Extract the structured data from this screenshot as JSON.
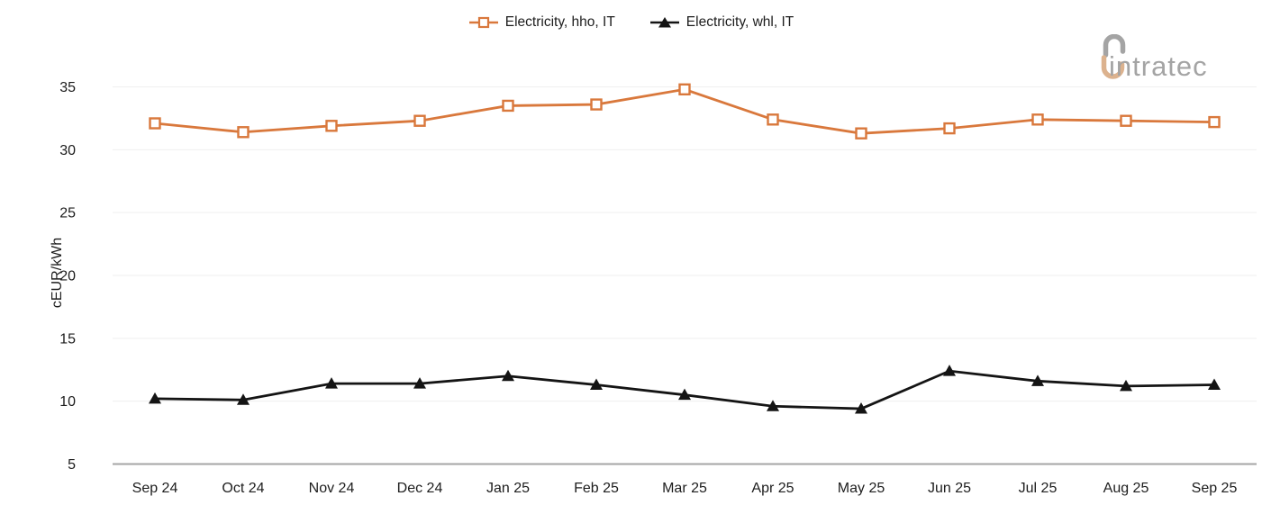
{
  "chart_data": {
    "type": "line",
    "title": "",
    "ylabel": "cEUR/kWh",
    "ylim": [
      5,
      35
    ],
    "yticks": [
      5,
      10,
      15,
      20,
      25,
      30,
      35
    ],
    "grid": "horizontal",
    "legend_position": "top-center",
    "categories": [
      "Sep 24",
      "Oct 24",
      "Nov 24",
      "Dec 24",
      "Jan 25",
      "Feb 25",
      "Mar 25",
      "Apr 25",
      "May 25",
      "Jun 25",
      "Jul 25",
      "Aug 25",
      "Sep 25"
    ],
    "series": [
      {
        "name": "Electricity, hho, IT",
        "color": "#d9783c",
        "marker": "square-open",
        "values": [
          32.1,
          31.4,
          31.9,
          32.3,
          33.5,
          33.6,
          34.8,
          32.4,
          31.3,
          31.7,
          32.4,
          32.3,
          32.2
        ]
      },
      {
        "name": "Electricity, whl, IT",
        "color": "#141414",
        "marker": "triangle-filled",
        "values": [
          10.2,
          10.1,
          11.4,
          11.4,
          12.0,
          11.3,
          10.5,
          9.6,
          9.4,
          12.4,
          11.6,
          11.2,
          11.3
        ]
      }
    ]
  },
  "logo": {
    "text": "intratec"
  },
  "colors": {
    "accent_orange": "#d9783c",
    "series_black": "#141414",
    "grid": "#efefef",
    "axis_line": "#a5a5a5",
    "text": "#1d1d1d",
    "logo_gray": "#a4a4a4",
    "logo_tan": "#dcb28e"
  }
}
